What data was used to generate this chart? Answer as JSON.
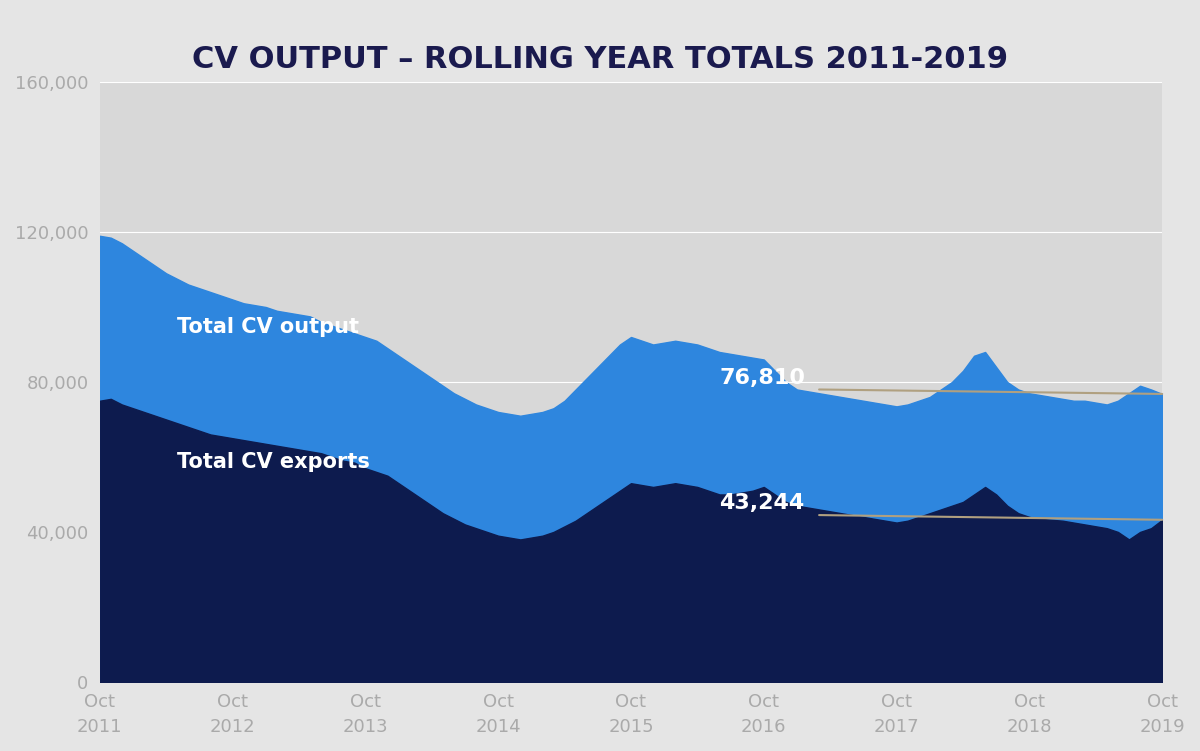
{
  "title": "CV OUTPUT – ROLLING YEAR TOTALS 2011-2019",
  "background_color": "#e5e5e5",
  "plot_background_color": "#d8d8d8",
  "title_color": "#1a1a4e",
  "title_fontsize": 22,
  "tick_color": "#aaaaaa",
  "area_output_color": "#2e86de",
  "area_exports_color": "#0d1b4e",
  "label_output": "Total CV output",
  "label_exports": "Total CV exports",
  "annotation_output_value": "76,810",
  "annotation_exports_value": "43,244",
  "annotation_line_color": "#b0a080",
  "ylim": [
    0,
    160000
  ],
  "yticks": [
    0,
    40000,
    80000,
    120000,
    160000
  ],
  "ytick_labels": [
    "0",
    "40,000",
    "80,000",
    "120,000",
    "160,000"
  ],
  "xtick_labels": [
    "Oct\n2011",
    "Oct\n2012",
    "Oct\n2013",
    "Oct\n2014",
    "Oct\n2015",
    "Oct\n2016",
    "Oct\n2017",
    "Oct\n2018",
    "Oct\n2019"
  ],
  "x_positions": [
    0,
    12,
    24,
    36,
    48,
    60,
    72,
    84,
    96
  ],
  "total_cv_output": [
    119000,
    118500,
    117000,
    115000,
    113000,
    111000,
    109000,
    107500,
    106000,
    105000,
    104000,
    103000,
    102000,
    101000,
    100500,
    100000,
    99000,
    98500,
    98000,
    97500,
    96000,
    95000,
    94000,
    93000,
    92000,
    91000,
    89000,
    87000,
    85000,
    83000,
    81000,
    79000,
    77000,
    75500,
    74000,
    73000,
    72000,
    71500,
    71000,
    71500,
    72000,
    73000,
    75000,
    78000,
    81000,
    84000,
    87000,
    90000,
    92000,
    91000,
    90000,
    90500,
    91000,
    90500,
    90000,
    89000,
    88000,
    87500,
    87000,
    86500,
    86000,
    83000,
    80000,
    78000,
    77500,
    77000,
    76500,
    76000,
    75500,
    75000,
    74500,
    74000,
    73500,
    74000,
    75000,
    76000,
    78000,
    80000,
    83000,
    87000,
    88000,
    84000,
    80000,
    78000,
    77000,
    76500,
    76000,
    75500,
    75000,
    75000,
    74500,
    74000,
    75000,
    77000,
    79000,
    78000,
    76810
  ],
  "total_cv_exports": [
    75000,
    75500,
    74000,
    73000,
    72000,
    71000,
    70000,
    69000,
    68000,
    67000,
    66000,
    65500,
    65000,
    64500,
    64000,
    63500,
    63000,
    62500,
    62000,
    61500,
    61000,
    60000,
    59000,
    58500,
    57000,
    56000,
    55000,
    53000,
    51000,
    49000,
    47000,
    45000,
    43500,
    42000,
    41000,
    40000,
    39000,
    38500,
    38000,
    38500,
    39000,
    40000,
    41500,
    43000,
    45000,
    47000,
    49000,
    51000,
    53000,
    52500,
    52000,
    52500,
    53000,
    52500,
    52000,
    51000,
    50000,
    50000,
    50500,
    51000,
    52000,
    50000,
    48000,
    47000,
    46500,
    46000,
    45500,
    45000,
    44500,
    44000,
    43500,
    43000,
    42500,
    43000,
    44000,
    45000,
    46000,
    47000,
    48000,
    50000,
    52000,
    50000,
    47000,
    45000,
    44000,
    43500,
    43244,
    43000,
    42500,
    42000,
    41500,
    41000,
    40000,
    38000,
    40000,
    41000,
    43244
  ]
}
